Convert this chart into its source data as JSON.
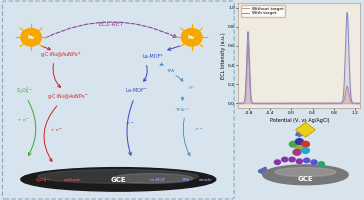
{
  "main_bg": "#d8e4ed",
  "chart_bg": "#f0ebe0",
  "xlim": [
    -1.0,
    1.3
  ],
  "ylim": [
    -0.05,
    1.05
  ],
  "xticks": [
    -0.8,
    -0.4,
    0.0,
    0.4,
    0.8,
    1.2
  ],
  "xlabel": "Potential (V, vs Ag/AgCl)",
  "ylabel": "ECL Intensity (a.u.)",
  "legend_labels": [
    "Without target",
    "With target"
  ],
  "line1_color": "#c08888",
  "line2_color": "#8888c8",
  "sun_color": "#f5a800",
  "red_color": "#cc2222",
  "blue_color": "#3344cc",
  "green_color": "#33aa33",
  "purple_color": "#884499",
  "cyan_color": "#4488bb"
}
